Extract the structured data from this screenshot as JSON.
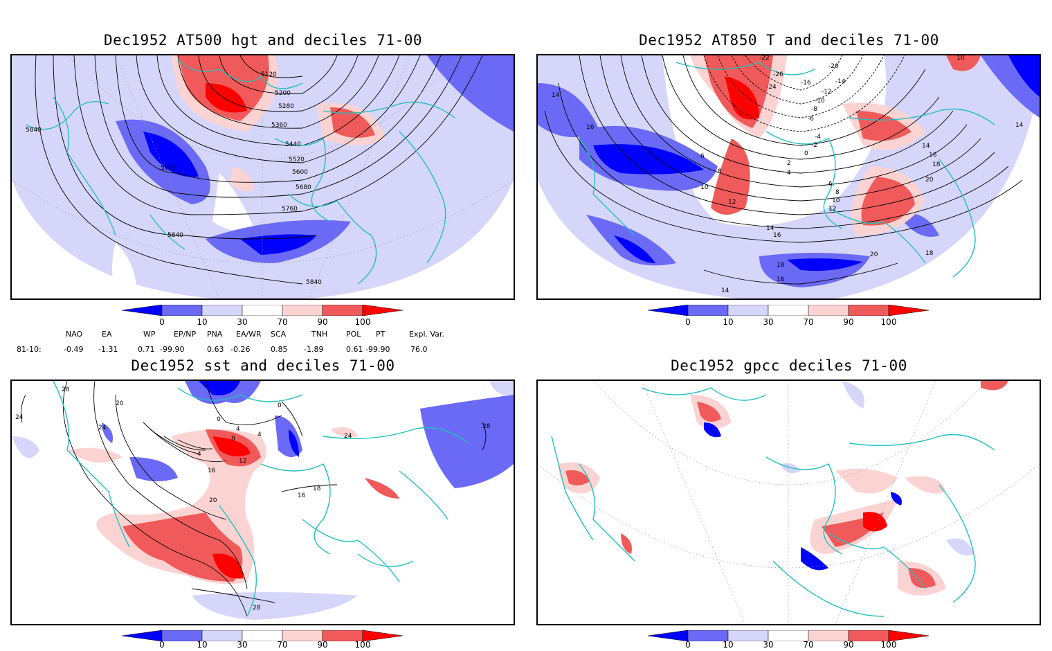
{
  "panels": [
    {
      "title": "Dec1952 AT500 hgt and deciles 71-00",
      "contour_labels": [
        "5120",
        "5200",
        "5280",
        "5360",
        "5440",
        "5520",
        "5600",
        "5680",
        "5760",
        "5840",
        "5680",
        "5840",
        "5840"
      ]
    },
    {
      "title": "Dec1952 AT850 T and deciles 71-00",
      "contour_labels": [
        "-22",
        "-20",
        "-26",
        "-24",
        "-16",
        "-14",
        "-12",
        "-10",
        "-8",
        "-6",
        "-4",
        "-2",
        "0",
        "2",
        "4",
        "6",
        "8",
        "10",
        "12",
        "14",
        "16",
        "18",
        "20",
        "14",
        "16",
        "6",
        "8",
        "10",
        "12",
        "14",
        "16",
        "18",
        "18",
        "16",
        "14",
        "20",
        "14",
        "10"
      ]
    },
    {
      "title": "Dec1952 sst and deciles 71-00",
      "contour_labels": [
        "28",
        "24",
        "20",
        "24",
        "0",
        "0",
        "4",
        "4",
        "8",
        "4",
        "12",
        "16",
        "20",
        "16",
        "18",
        "28",
        "24",
        "28"
      ]
    },
    {
      "title": "Dec1952 gpcc deciles 71-00",
      "contour_labels": []
    }
  ],
  "colorbar": {
    "ticks": [
      "0",
      "10",
      "30",
      "70",
      "90",
      "100"
    ],
    "colors": [
      "#0000ff",
      "#6a6af6",
      "#d6d6fa",
      "#ffffff",
      "#fbd3d3",
      "#f05a5a",
      "#ff0000"
    ]
  },
  "indices": {
    "headers": [
      "NAO",
      "EA",
      "WP",
      "EP/NP",
      "PNA",
      "EA/WR",
      "SCA",
      "TNH",
      "POL",
      "PT",
      "Expl. Var."
    ],
    "row_label": "81-10:",
    "values": [
      "-0.49",
      "-1.31",
      "0.71",
      "-99.90",
      "0.63",
      "-0.26",
      "0.85",
      "-1.89",
      "0.61",
      "-99.90",
      "76.0"
    ]
  }
}
